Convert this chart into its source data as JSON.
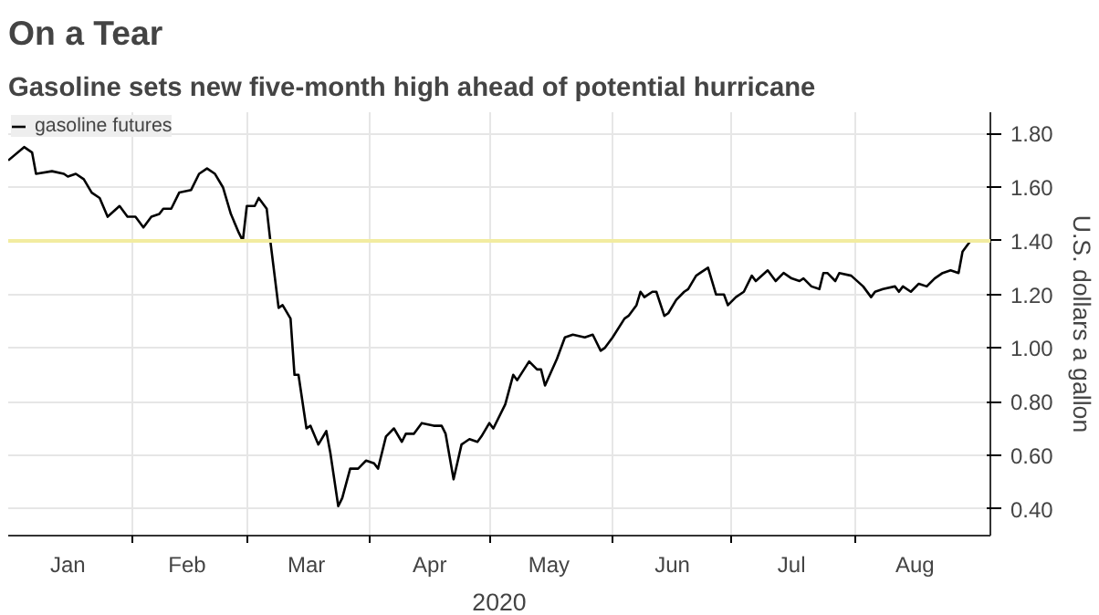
{
  "chart_data": {
    "type": "line",
    "title": "On a Tear",
    "subtitle": "Gasoline sets new five-month high ahead of potential hurricane",
    "xlabel": "2020",
    "ylabel": "U.S. dollars a gallon",
    "x": [
      "2020-01-01",
      "2020-01-05",
      "2020-01-07",
      "2020-01-08",
      "2020-01-12",
      "2020-01-15",
      "2020-01-16",
      "2020-01-18",
      "2020-01-20",
      "2020-01-22",
      "2020-01-24",
      "2020-01-26",
      "2020-01-29",
      "2020-01-31",
      "2020-02-02",
      "2020-02-04",
      "2020-02-06",
      "2020-02-08",
      "2020-02-09",
      "2020-02-11",
      "2020-02-13",
      "2020-02-16",
      "2020-02-18",
      "2020-02-20",
      "2020-02-22",
      "2020-02-24",
      "2020-02-26",
      "2020-02-28",
      "2020-02-29",
      "2020-03-01",
      "2020-03-03",
      "2020-03-04",
      "2020-03-06",
      "2020-03-07",
      "2020-03-09",
      "2020-03-10",
      "2020-03-12",
      "2020-03-13",
      "2020-03-14",
      "2020-03-16",
      "2020-03-17",
      "2020-03-19",
      "2020-03-21",
      "2020-03-22",
      "2020-03-24",
      "2020-03-25",
      "2020-03-27",
      "2020-03-29",
      "2020-03-31",
      "2020-04-02",
      "2020-04-03",
      "2020-04-05",
      "2020-04-07",
      "2020-04-09",
      "2020-04-10",
      "2020-04-12",
      "2020-04-14",
      "2020-04-17",
      "2020-04-19",
      "2020-04-20",
      "2020-04-22",
      "2020-04-24",
      "2020-04-26",
      "2020-04-28",
      "2020-04-29",
      "2020-05-01",
      "2020-05-02",
      "2020-05-05",
      "2020-05-07",
      "2020-05-08",
      "2020-05-11",
      "2020-05-13",
      "2020-05-14",
      "2020-05-15",
      "2020-05-18",
      "2020-05-20",
      "2020-05-22",
      "2020-05-25",
      "2020-05-27",
      "2020-05-29",
      "2020-05-30",
      "2020-06-01",
      "2020-06-04",
      "2020-06-05",
      "2020-06-07",
      "2020-06-08",
      "2020-06-09",
      "2020-06-11",
      "2020-06-12",
      "2020-06-14",
      "2020-06-15",
      "2020-06-17",
      "2020-06-19",
      "2020-06-20",
      "2020-06-22",
      "2020-06-23",
      "2020-06-25",
      "2020-06-27",
      "2020-06-29",
      "2020-06-30",
      "2020-07-02",
      "2020-07-04",
      "2020-07-06",
      "2020-07-07",
      "2020-07-10",
      "2020-07-12",
      "2020-07-14",
      "2020-07-16",
      "2020-07-18",
      "2020-07-19",
      "2020-07-21",
      "2020-07-23",
      "2020-07-24",
      "2020-07-25",
      "2020-07-27",
      "2020-07-28",
      "2020-07-31",
      "2020-08-03",
      "2020-08-05",
      "2020-08-06",
      "2020-08-08",
      "2020-08-11",
      "2020-08-12",
      "2020-08-13",
      "2020-08-15",
      "2020-08-17",
      "2020-08-19",
      "2020-08-21",
      "2020-08-23",
      "2020-08-25",
      "2020-08-27",
      "2020-08-28",
      "2020-08-30"
    ],
    "series": [
      {
        "name": "gasoline futures",
        "color": "#000000",
        "values": [
          1.7,
          1.75,
          1.73,
          1.65,
          1.66,
          1.65,
          1.64,
          1.65,
          1.63,
          1.58,
          1.56,
          1.49,
          1.53,
          1.49,
          1.49,
          1.45,
          1.49,
          1.5,
          1.52,
          1.52,
          1.58,
          1.59,
          1.65,
          1.67,
          1.65,
          1.6,
          1.5,
          1.43,
          1.4,
          1.53,
          1.53,
          1.56,
          1.52,
          1.39,
          1.15,
          1.16,
          1.11,
          0.9,
          0.9,
          0.7,
          0.71,
          0.64,
          0.69,
          0.61,
          0.41,
          0.44,
          0.55,
          0.55,
          0.58,
          0.57,
          0.55,
          0.67,
          0.7,
          0.65,
          0.68,
          0.68,
          0.72,
          0.71,
          0.71,
          0.68,
          0.51,
          0.64,
          0.66,
          0.65,
          0.67,
          0.72,
          0.7,
          0.79,
          0.9,
          0.88,
          0.95,
          0.92,
          0.92,
          0.86,
          0.96,
          1.04,
          1.05,
          1.04,
          1.05,
          0.99,
          1.0,
          1.04,
          1.11,
          1.12,
          1.16,
          1.21,
          1.19,
          1.21,
          1.21,
          1.12,
          1.13,
          1.18,
          1.21,
          1.22,
          1.27,
          1.28,
          1.3,
          1.2,
          1.2,
          1.16,
          1.19,
          1.21,
          1.27,
          1.25,
          1.29,
          1.25,
          1.28,
          1.26,
          1.25,
          1.26,
          1.23,
          1.22,
          1.28,
          1.28,
          1.25,
          1.28,
          1.27,
          1.23,
          1.19,
          1.21,
          1.22,
          1.23,
          1.21,
          1.23,
          1.21,
          1.24,
          1.23,
          1.26,
          1.28,
          1.29,
          1.28,
          1.36,
          1.4
        ]
      }
    ],
    "xlim": [
      "2020-01-01",
      "2020-09-04"
    ],
    "xticks": [
      {
        "value": "2020-01-16",
        "label": "Jan"
      },
      {
        "value": "2020-02-15",
        "label": "Feb"
      },
      {
        "value": "2020-03-16",
        "label": "Mar"
      },
      {
        "value": "2020-04-16",
        "label": "Apr"
      },
      {
        "value": "2020-05-16",
        "label": "May"
      },
      {
        "value": "2020-06-16",
        "label": "Jun"
      },
      {
        "value": "2020-07-16",
        "label": "Jul"
      },
      {
        "value": "2020-08-16",
        "label": "Aug"
      },
      {
        "value": "2020-02-01",
        "label": null
      },
      {
        "value": "2020-03-01",
        "label": null
      },
      {
        "value": "2020-04-01",
        "label": null
      },
      {
        "value": "2020-05-01",
        "label": null
      },
      {
        "value": "2020-06-01",
        "label": null
      },
      {
        "value": "2020-07-01",
        "label": null
      },
      {
        "value": "2020-08-01",
        "label": null
      }
    ],
    "ylim": [
      0.3,
      1.88
    ],
    "yticks": [
      {
        "value": 0.4,
        "label": "0.40"
      },
      {
        "value": 0.6,
        "label": "0.60"
      },
      {
        "value": 0.8,
        "label": "0.80"
      },
      {
        "value": 1.0,
        "label": "1.00"
      },
      {
        "value": 1.2,
        "label": "1.20"
      },
      {
        "value": 1.4,
        "label": "1.40"
      },
      {
        "value": 1.6,
        "label": "1.60"
      },
      {
        "value": 1.8,
        "label": "1.80"
      }
    ],
    "ref_lines": [
      {
        "axis": "y",
        "value": 1.4,
        "color": "#f2eca0"
      }
    ],
    "grid": true,
    "legend": "top left"
  }
}
